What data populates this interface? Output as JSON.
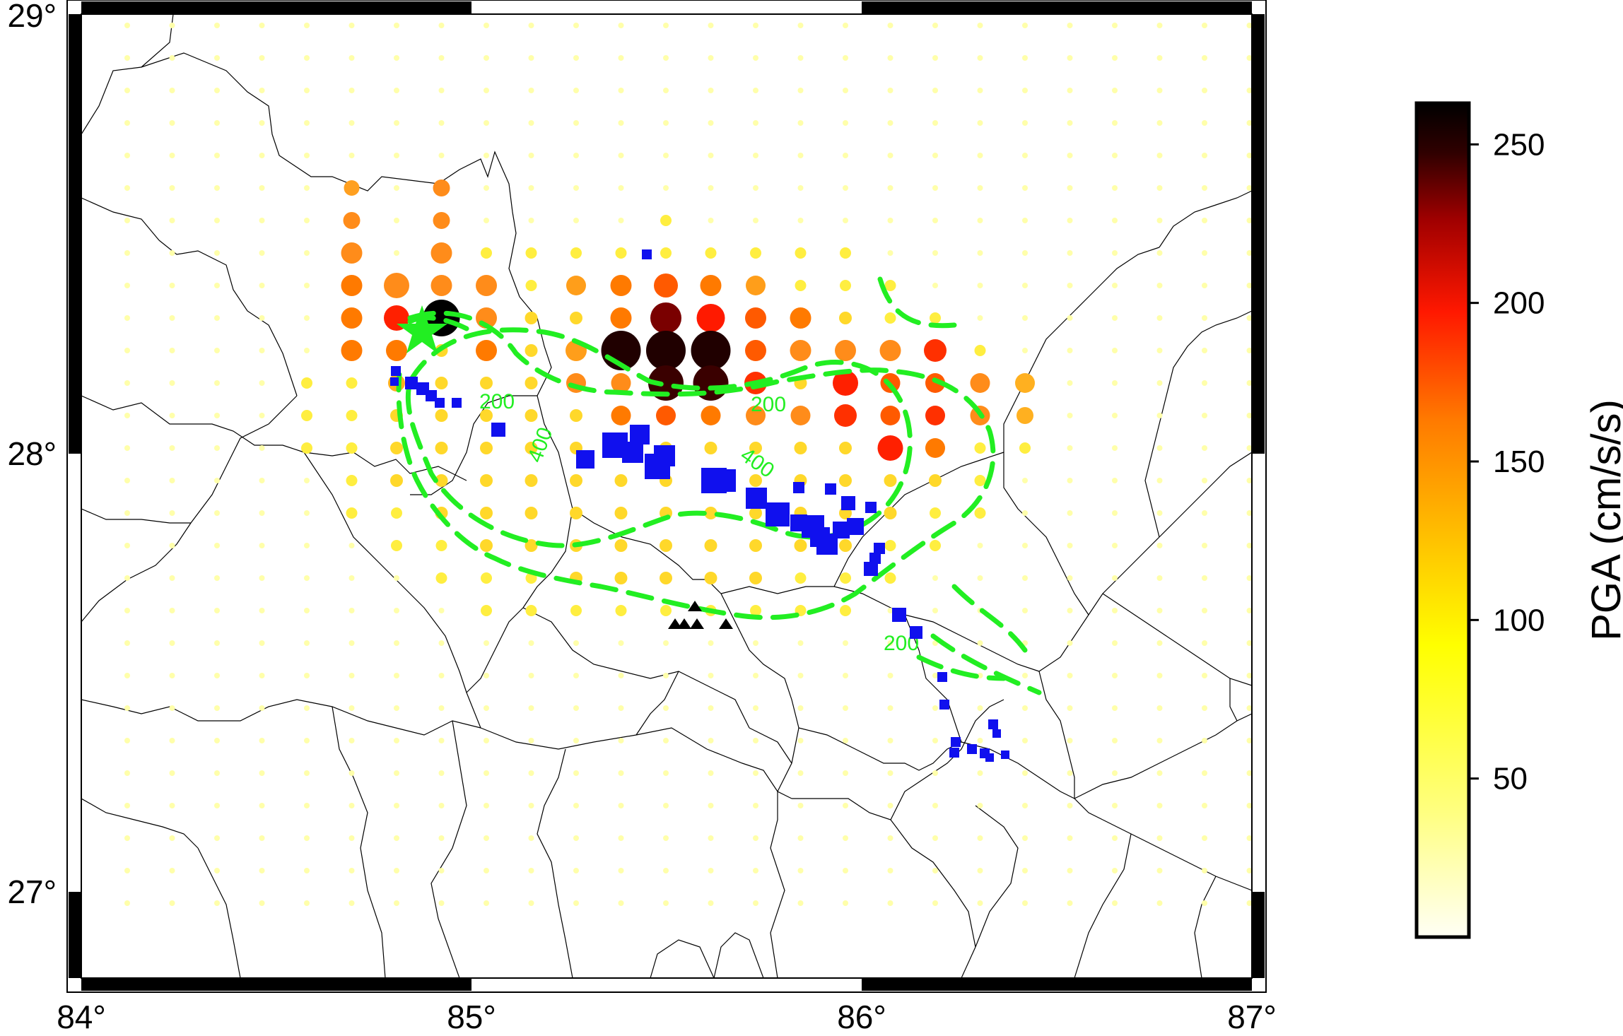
{
  "map": {
    "lon_labels": [
      "84°",
      "85°",
      "86°",
      "87°"
    ],
    "lat_labels": [
      "27°",
      "28°",
      "29°"
    ],
    "lon_range": [
      84,
      87
    ],
    "lat_range": [
      26.8,
      29
    ],
    "contour_labels": [
      "200",
      "400",
      "400",
      "200",
      "200"
    ],
    "colors": {
      "contour": "#22ee22",
      "epicenter": "#22ee22",
      "stations_square": "#1010ee",
      "stations_triangle": "#000000",
      "borders": "#000000"
    },
    "markers": {
      "epicenter": "star-icon",
      "station_square": "square-icon",
      "station_triangle": "triangle-icon"
    }
  },
  "colorbar": {
    "label": "PGA (cm/s/s)",
    "ticks": [
      "50",
      "100",
      "150",
      "200",
      "250"
    ],
    "tick_values": [
      50,
      100,
      150,
      200,
      250
    ],
    "range": [
      0,
      263
    ],
    "colors": [
      "#fffff5",
      "#ffff70",
      "#ffff00",
      "#ffcc00",
      "#ff8800",
      "#ff1a00",
      "#a00000",
      "#300000",
      "#000000"
    ]
  }
}
